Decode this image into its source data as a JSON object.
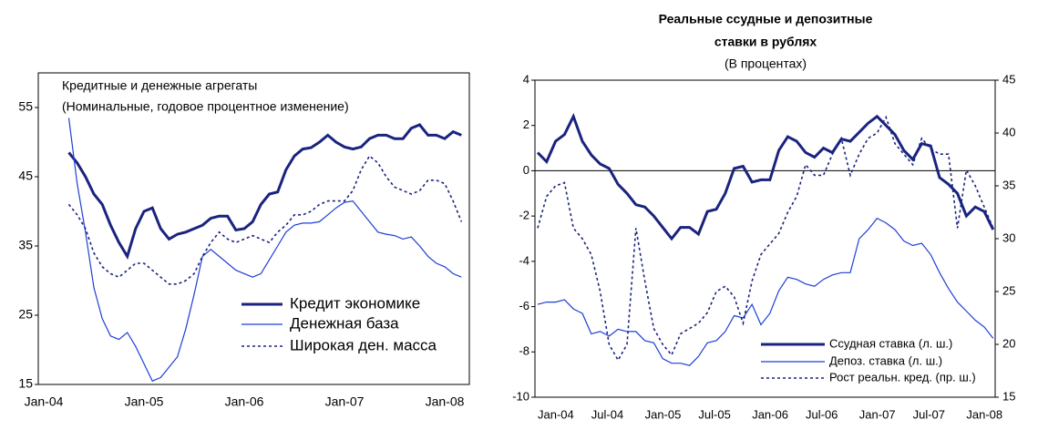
{
  "chart_data": [
    {
      "type": "line",
      "annotations": [
        "Кредитные и денежные агрегаты",
        "(Номинальные, годовое процентное изменение)"
      ],
      "categories": [
        "Jan-04",
        null,
        null,
        null,
        null,
        null,
        null,
        null,
        null,
        null,
        null,
        null,
        "Jan-05",
        null,
        null,
        null,
        null,
        null,
        null,
        null,
        null,
        null,
        null,
        null,
        "Jan-06",
        null,
        null,
        null,
        null,
        null,
        null,
        null,
        null,
        null,
        null,
        null,
        "Jan-07",
        null,
        null,
        null,
        null,
        null,
        null,
        null,
        null,
        null,
        null,
        null,
        "Jan-08",
        null,
        null
      ],
      "ylim": [
        15,
        60
      ],
      "yticks": [
        15,
        25,
        35,
        45,
        55
      ],
      "legend": "lower right",
      "series": [
        {
          "name": "Кредит экономике",
          "color": "#1a237e",
          "values": [
            null,
            null,
            null,
            48.5,
            47,
            45,
            42.5,
            41,
            38,
            35.5,
            33.5,
            37.5,
            40,
            40.5,
            37.5,
            36,
            36.7,
            37,
            37.5,
            38,
            39,
            39.3,
            39.3,
            37.3,
            37.5,
            38.5,
            41,
            42.5,
            42.8,
            46,
            48,
            49,
            49.2,
            50,
            51,
            50,
            49.3,
            49,
            49.3,
            50.5,
            51,
            51,
            50.5,
            50.5,
            52,
            52.5,
            51,
            51,
            50.5,
            51.5,
            51
          ]
        },
        {
          "name": "Денежная база",
          "color": "#1e3fd6",
          "values": [
            null,
            null,
            null,
            53.5,
            44,
            37,
            29,
            24.5,
            22,
            21.5,
            22.5,
            20.5,
            18,
            15.5,
            16,
            17.5,
            19,
            23,
            28,
            33.5,
            34.5,
            33.5,
            32.5,
            31.5,
            31,
            30.5,
            31,
            33,
            35,
            37,
            38,
            38.3,
            38.3,
            38.5,
            39.5,
            40.5,
            41.3,
            41.5,
            40,
            38.5,
            37,
            36.7,
            36.5,
            36,
            36.3,
            35,
            33.5,
            32.5,
            32,
            31,
            30.5
          ]
        },
        {
          "name": "Широкая ден. масса",
          "color": "#1a237e",
          "dashed": true,
          "values": [
            null,
            null,
            null,
            41,
            39.5,
            37.5,
            34,
            32,
            31,
            30.5,
            31.5,
            32.5,
            32.5,
            31.5,
            30.5,
            29.5,
            29.5,
            30,
            31,
            33.5,
            35.5,
            37,
            36,
            35.5,
            36,
            36.5,
            36,
            35.5,
            37,
            38,
            39.5,
            39.5,
            40,
            41,
            41.5,
            41.5,
            41.5,
            43,
            46,
            48,
            47,
            45,
            43.5,
            43,
            42.5,
            43,
            44.5,
            44.5,
            44,
            41.5,
            38.5
          ]
        }
      ]
    },
    {
      "type": "line",
      "title": [
        "Реальные ссудные и депозитные",
        "ставки в рублях"
      ],
      "subtitle": "(В процентах)",
      "categories": [
        "Jan-04",
        null,
        null,
        null,
        null,
        null,
        "Jul-04",
        null,
        null,
        null,
        null,
        null,
        "Jan-05",
        null,
        null,
        null,
        null,
        null,
        "Jul-05",
        null,
        null,
        null,
        null,
        null,
        "Jan-06",
        null,
        null,
        null,
        null,
        null,
        "Jul-06",
        null,
        null,
        null,
        null,
        null,
        "Jan-07",
        null,
        null,
        null,
        null,
        null,
        "Jul-07",
        null,
        null,
        null,
        null,
        null,
        "Jan-08",
        null,
        null,
        null
      ],
      "ylim": [
        -10,
        4
      ],
      "yticks": [
        -10,
        -8,
        -6,
        -4,
        -2,
        0,
        2,
        4
      ],
      "y2lim": [
        15,
        45
      ],
      "y2ticks": [
        15,
        20,
        25,
        30,
        35,
        40,
        45
      ],
      "legend": "lower right",
      "series": [
        {
          "name": "Ссудная ставка (л. ш.)",
          "color": "#1a237e",
          "values": [
            0.8,
            0.4,
            1.3,
            1.6,
            2.4,
            1.3,
            0.7,
            0.3,
            0.1,
            -0.6,
            -1.0,
            -1.5,
            -1.6,
            -2.0,
            -2.5,
            -3.0,
            -2.5,
            -2.5,
            -2.8,
            -1.8,
            -1.7,
            -1.0,
            0.1,
            0.2,
            -0.5,
            -0.4,
            -0.4,
            0.9,
            1.5,
            1.3,
            0.8,
            0.6,
            1.0,
            0.8,
            1.4,
            1.3,
            1.7,
            2.1,
            2.4,
            2.0,
            1.6,
            0.9,
            0.5,
            1.2,
            1.1,
            -0.3,
            -0.6,
            -1.0,
            -2.0,
            -1.6,
            -1.8,
            -2.6
          ]
        },
        {
          "name": "Депоз. ставка (л. ш.)",
          "color": "#1e3fd6",
          "values": [
            -5.9,
            -5.8,
            -5.8,
            -5.7,
            -6.1,
            -6.3,
            -7.2,
            -7.1,
            -7.3,
            -7.0,
            -7.1,
            -7.1,
            -7.5,
            -7.6,
            -8.3,
            -8.5,
            -8.5,
            -8.6,
            -8.2,
            -7.6,
            -7.5,
            -7.1,
            -6.4,
            -6.5,
            -5.9,
            -6.8,
            -6.3,
            -5.3,
            -4.7,
            -4.8,
            -5.0,
            -5.1,
            -4.8,
            -4.6,
            -4.5,
            -4.5,
            -3.0,
            -2.6,
            -2.1,
            -2.3,
            -2.6,
            -3.1,
            -3.3,
            -3.2,
            -3.7,
            -4.5,
            -5.2,
            -5.8,
            -6.2,
            -6.6,
            -6.9,
            -7.4
          ]
        },
        {
          "name": "Рост реальн. кред. (пр. ш.)",
          "color": "#1a237e",
          "dashed": true,
          "axis": "y2",
          "values": [
            31,
            34,
            35,
            35.3,
            31,
            30,
            28.5,
            25,
            20,
            18.5,
            20,
            31,
            26,
            21.5,
            20,
            19,
            21,
            21.5,
            22,
            23,
            25,
            25.5,
            24.5,
            22,
            26,
            28.5,
            29.5,
            30.5,
            32.5,
            34,
            37,
            36,
            36,
            38,
            39.5,
            36,
            38,
            39.5,
            40,
            41.5,
            39,
            38,
            37,
            39.5,
            38.5,
            38,
            38,
            31,
            36.5,
            35,
            33,
            31
          ]
        }
      ]
    }
  ]
}
